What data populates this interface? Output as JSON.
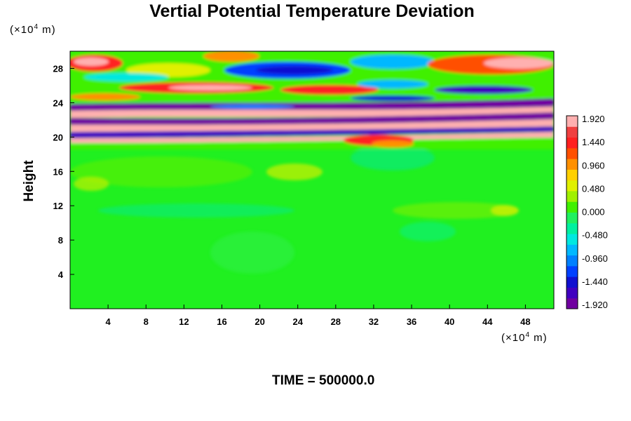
{
  "chart_data": {
    "type": "heatmap",
    "title": "Vertial Potential Temperature Deviation",
    "ylabel": "Height",
    "y_unit": {
      "prefix": "(×10",
      "exp": "4",
      "suffix": " m)"
    },
    "x_unit": {
      "prefix": "(×10",
      "exp": "4",
      "suffix": " m)"
    },
    "xlim": [
      0,
      51
    ],
    "ylim": [
      0,
      30
    ],
    "x_ticks": [
      "4",
      "8",
      "12",
      "16",
      "20",
      "24",
      "28",
      "32",
      "36",
      "40",
      "44",
      "48"
    ],
    "y_ticks": [
      "4",
      "8",
      "12",
      "16",
      "20",
      "24",
      "28"
    ],
    "colorbar": {
      "min": -1.92,
      "max": 1.92,
      "labels": [
        "1.920",
        "1.440",
        "0.960",
        "0.480",
        "0.000",
        "-0.480",
        "-0.960",
        "-1.440",
        "-1.920"
      ],
      "colors": [
        "#7000a0",
        "#4000c0",
        "#1010d0",
        "#0040ff",
        "#0080ff",
        "#00b8ff",
        "#00e8e0",
        "#00f0a0",
        "#20f060",
        "#40f000",
        "#a0f000",
        "#e0f000",
        "#ffd000",
        "#ff9000",
        "#ff5000",
        "#ff2020",
        "#f04040",
        "#ffb0b0"
      ]
    },
    "annotation": "TIME = 500000.0"
  }
}
